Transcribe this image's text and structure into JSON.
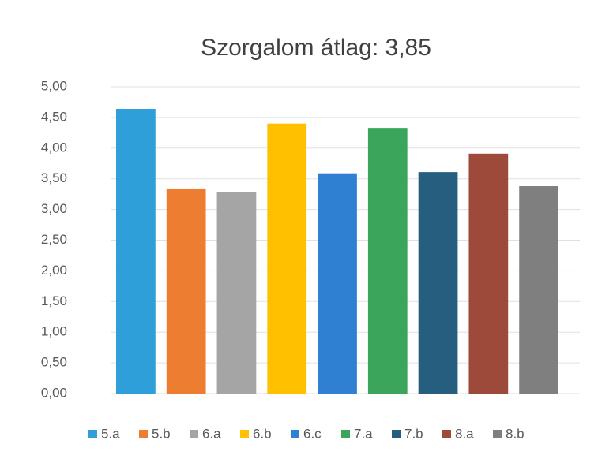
{
  "chart_data": {
    "type": "bar",
    "title": "Szorgalom  átlag: 3,85",
    "categories": [
      "5.a",
      "5.b",
      "6.a",
      "6.b",
      "6.c",
      "7.a",
      "7.b",
      "8.a",
      "8.b"
    ],
    "values": [
      4.64,
      3.33,
      3.28,
      4.4,
      3.59,
      4.33,
      3.61,
      3.91,
      3.38
    ],
    "colors": [
      "#2e9fd8",
      "#ed7d31",
      "#a5a5a5",
      "#ffc000",
      "#2f7fd3",
      "#3aa55b",
      "#255e7e",
      "#9e4a3a",
      "#7f7f7f"
    ],
    "ylim": [
      0,
      5
    ],
    "yticks": [
      {
        "value": 0,
        "label": "0,00"
      },
      {
        "value": 0.5,
        "label": "0,50"
      },
      {
        "value": 1,
        "label": "1,00"
      },
      {
        "value": 1.5,
        "label": "1,50"
      },
      {
        "value": 2,
        "label": "2,00"
      },
      {
        "value": 2.5,
        "label": "2,50"
      },
      {
        "value": 3,
        "label": "3,00"
      },
      {
        "value": 3.5,
        "label": "3,50"
      },
      {
        "value": 4,
        "label": "4,00"
      },
      {
        "value": 4.5,
        "label": "4,50"
      },
      {
        "value": 5,
        "label": "5,00"
      }
    ],
    "grid": true,
    "legend": "bottom"
  }
}
